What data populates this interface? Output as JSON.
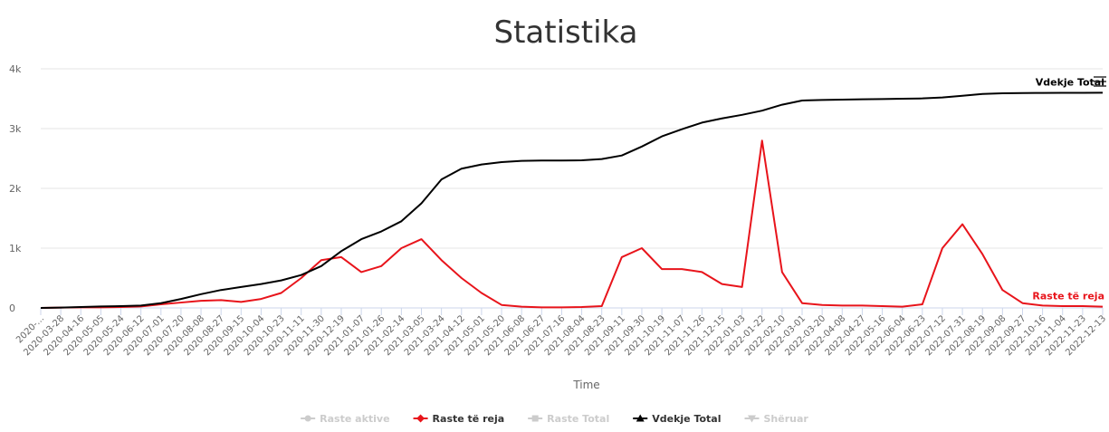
{
  "chart_data": {
    "type": "line",
    "title": "Statistika",
    "xlabel": "Time",
    "categories": [
      "2020-...",
      "2020-03-28",
      "2020-04-16",
      "2020-05-05",
      "2020-05-24",
      "2020-06-12",
      "2020-07-01",
      "2020-07-20",
      "2020-08-08",
      "2020-08-27",
      "2020-09-15",
      "2020-10-04",
      "2020-10-23",
      "2020-11-11",
      "2020-11-30",
      "2020-12-19",
      "2021-01-07",
      "2021-01-26",
      "2021-02-14",
      "2021-03-05",
      "2021-03-24",
      "2021-04-12",
      "2021-05-01",
      "2021-05-20",
      "2021-06-08",
      "2021-06-27",
      "2021-07-16",
      "2021-08-04",
      "2021-08-23",
      "2021-09-11",
      "2021-09-30",
      "2021-10-19",
      "2021-11-07",
      "2021-11-26",
      "2021-12-15",
      "2022-01-03",
      "2022-01-22",
      "2022-02-10",
      "2022-03-01",
      "2022-03-20",
      "2022-04-08",
      "2022-04-27",
      "2022-05-16",
      "2022-06-04",
      "2022-06-23",
      "2022-07-12",
      "2022-07-31",
      "2022-08-19",
      "2022-09-08",
      "2022-09-27",
      "2022-10-16",
      "2022-11-04",
      "2022-11-23",
      "2022-12-13"
    ],
    "series": [
      {
        "name": "Raste aktive",
        "color": "#cccccc",
        "marker": "circle",
        "visible": false
      },
      {
        "name": "Raste të reja",
        "color": "#e8141b",
        "marker": "diamond",
        "visible": true,
        "end_label": true,
        "values": [
          0,
          5,
          10,
          10,
          15,
          25,
          60,
          90,
          120,
          130,
          100,
          150,
          250,
          500,
          800,
          850,
          600,
          700,
          1000,
          1150,
          800,
          500,
          250,
          50,
          20,
          10,
          10,
          15,
          30,
          850,
          1000,
          650,
          650,
          600,
          400,
          350,
          2800,
          600,
          80,
          50,
          40,
          40,
          30,
          20,
          60,
          1000,
          1400,
          900,
          300,
          80,
          40,
          30,
          30,
          20
        ]
      },
      {
        "name": "Raste Total",
        "color": "#cccccc",
        "marker": "square",
        "visible": false
      },
      {
        "name": "Vdekje Total",
        "color": "#000000",
        "marker": "triangle",
        "visible": true,
        "end_label": true,
        "values": [
          0,
          5,
          15,
          25,
          30,
          40,
          80,
          150,
          230,
          300,
          350,
          400,
          460,
          550,
          700,
          950,
          1150,
          1280,
          1450,
          1750,
          2150,
          2330,
          2400,
          2440,
          2460,
          2465,
          2465,
          2470,
          2490,
          2550,
          2700,
          2870,
          2990,
          3100,
          3170,
          3230,
          3300,
          3400,
          3470,
          3480,
          3485,
          3490,
          3495,
          3500,
          3505,
          3520,
          3550,
          3580,
          3590,
          3595,
          3597,
          3598,
          3598,
          3600
        ]
      },
      {
        "name": "Shëruar",
        "color": "#cccccc",
        "marker": "triangle-down",
        "visible": false
      }
    ],
    "ylim": [
      0,
      4000
    ],
    "yticks": [
      0,
      {
        "value": 1000,
        "label": "1k"
      },
      {
        "value": 2000,
        "label": "2k"
      },
      {
        "value": 3000,
        "label": "3k"
      },
      {
        "value": 4000,
        "label": "4k"
      }
    ],
    "grid": true,
    "legend": "bottom"
  }
}
